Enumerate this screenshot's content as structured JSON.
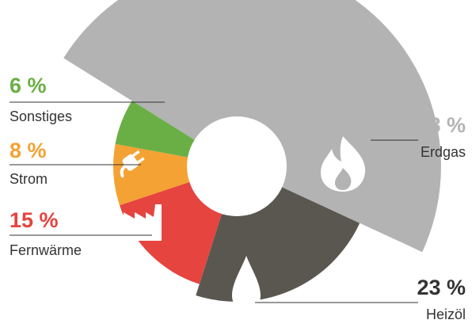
{
  "chart_data": {
    "type": "pie",
    "variant": "donut",
    "title": "",
    "slices": [
      {
        "name": "Erdgas",
        "value": 48,
        "label": "48 %",
        "color": "#b3b3b3",
        "icon": "flame-icon"
      },
      {
        "name": "Heizöl",
        "value": 23,
        "label": "23 %",
        "color": "#5a5750",
        "icon": "oil-drop-icon"
      },
      {
        "name": "Fernwärme",
        "value": 15,
        "label": "15 %",
        "color": "#e5443f",
        "icon": "factory-icon"
      },
      {
        "name": "Strom",
        "value": 8,
        "label": "8 %",
        "color": "#f4a234",
        "icon": "plug-icon"
      },
      {
        "name": "Sonstiges",
        "value": 6,
        "label": "6 %",
        "color": "#6aaf45",
        "icon": ""
      }
    ]
  }
}
